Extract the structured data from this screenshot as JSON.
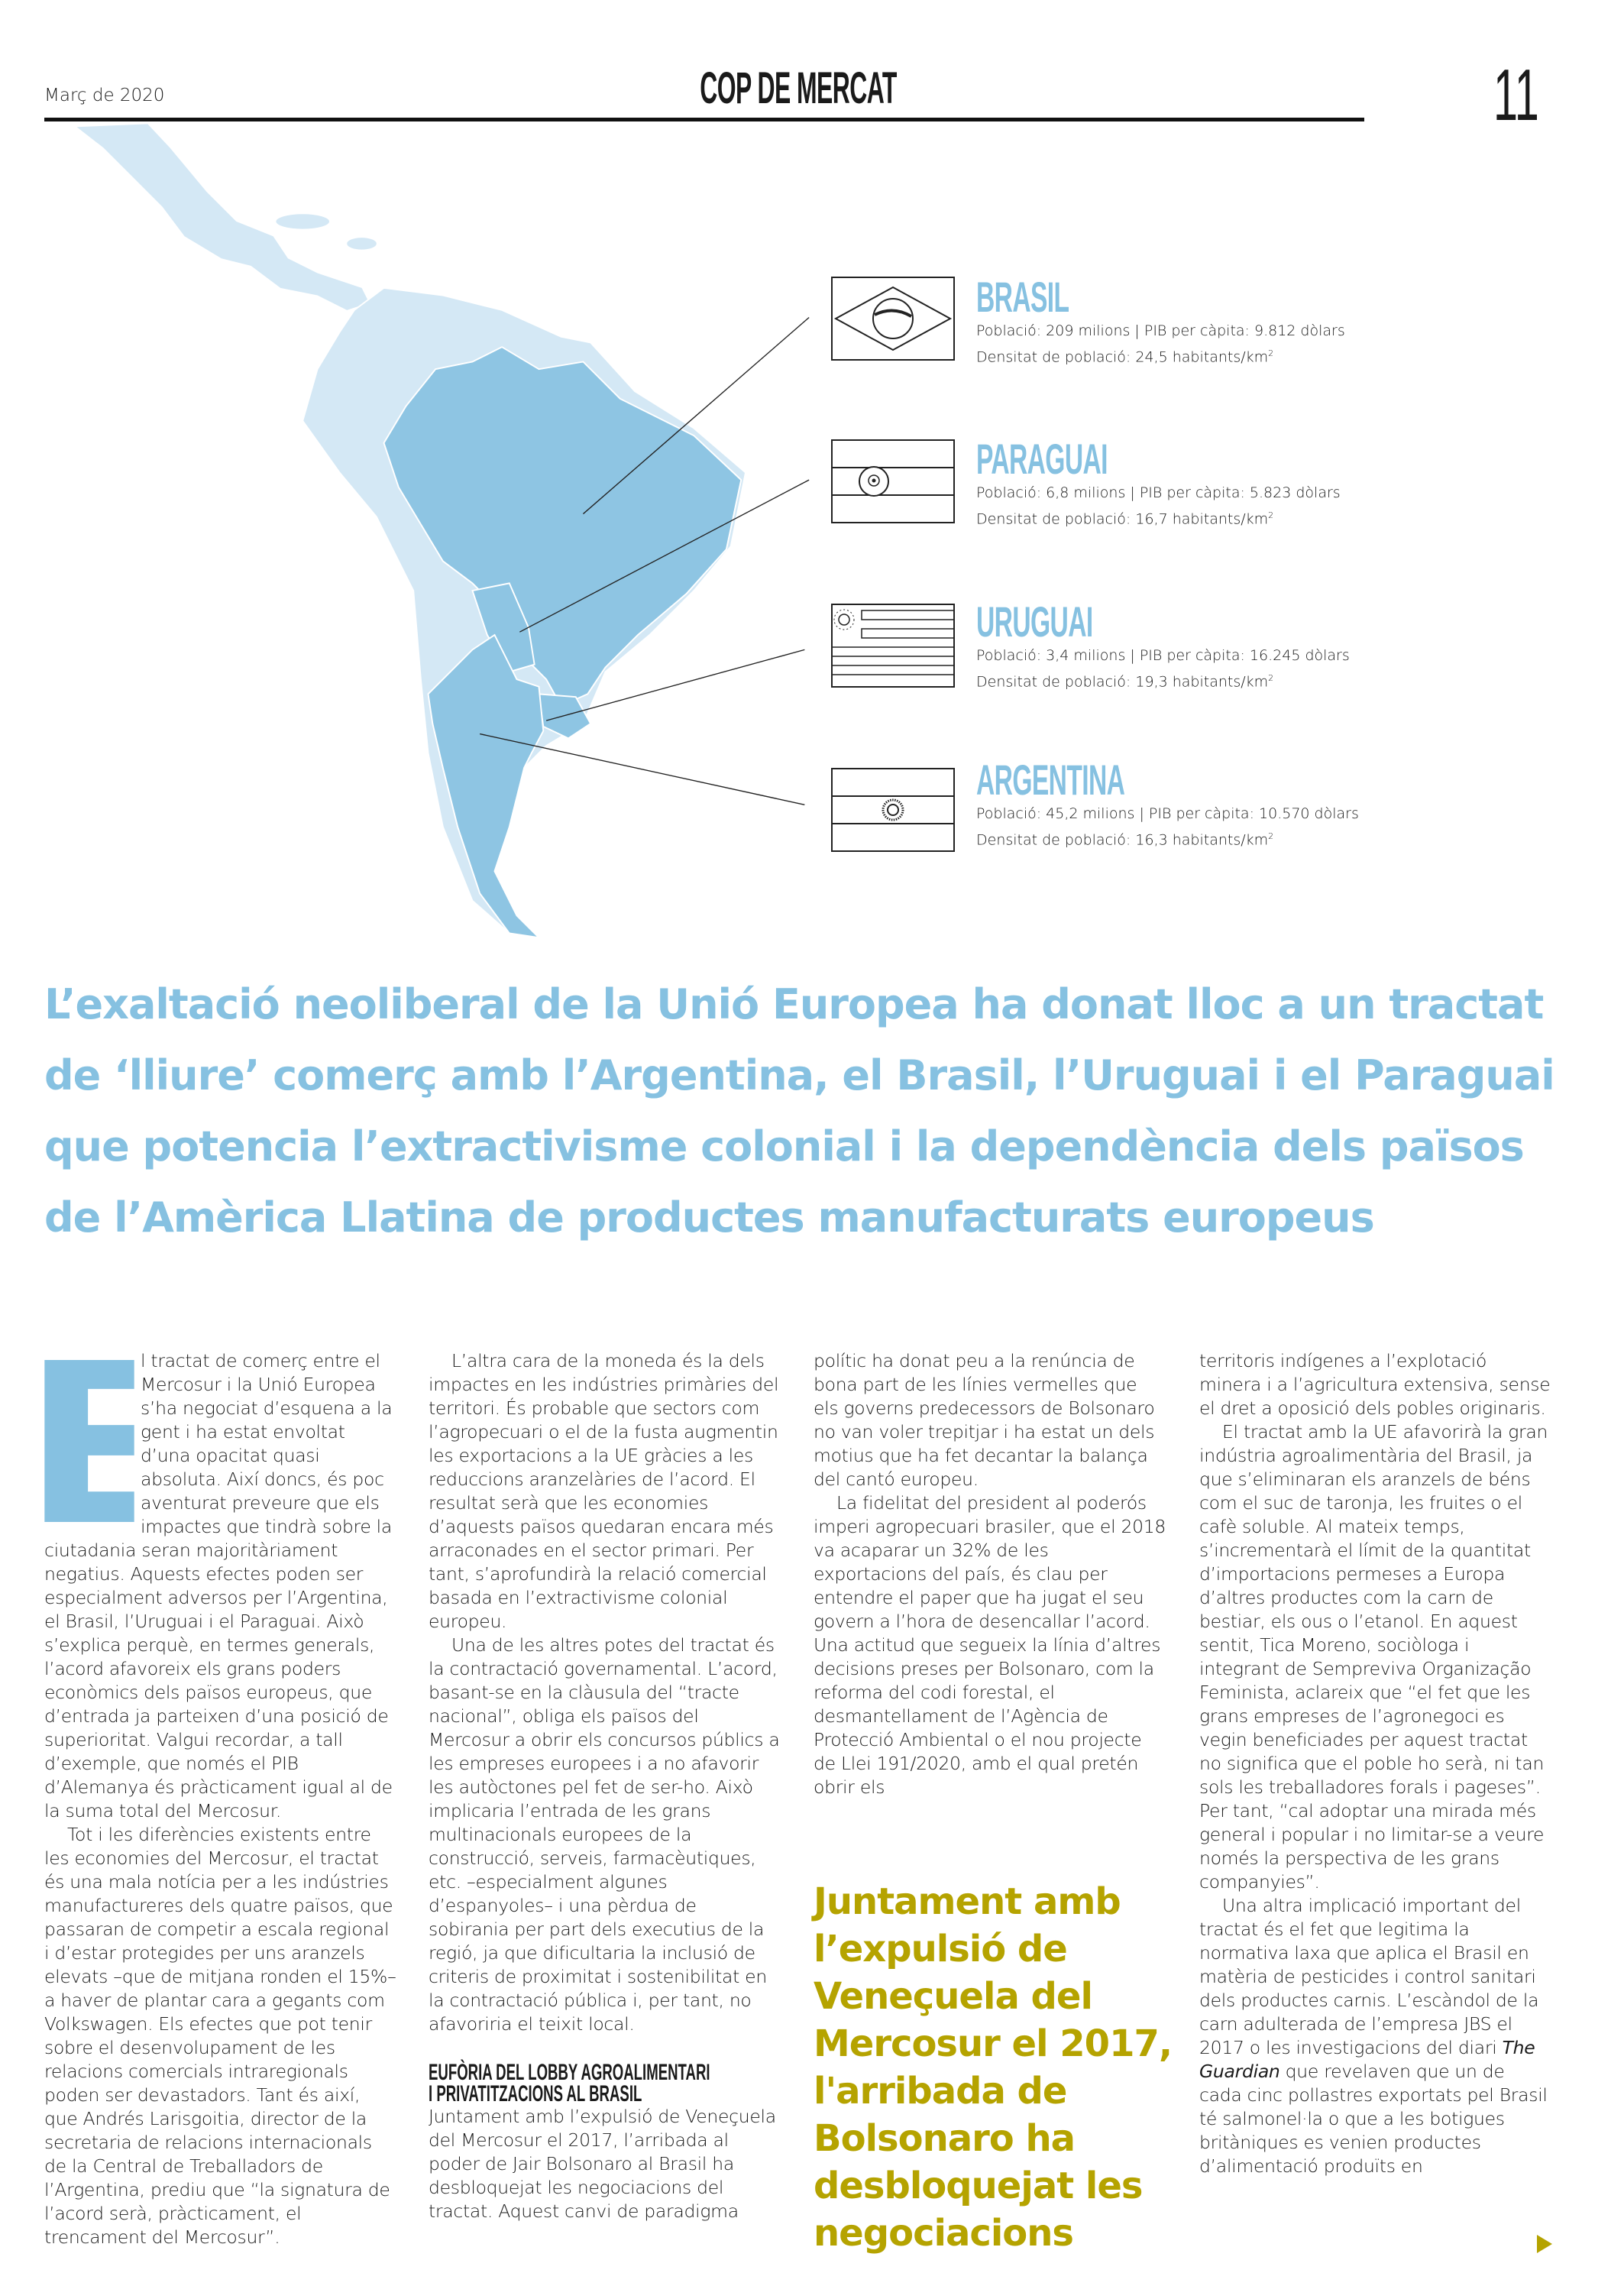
{
  "header": {
    "date": "Març de 2020",
    "section": "COP DE MERCAT",
    "page_number": "11"
  },
  "colors": {
    "accent_blue": "#86c1e1",
    "map_light": "#d4e8f5",
    "map_mercosur": "#8ec5e3",
    "pullquote_olive": "#b5a300"
  },
  "countries": [
    {
      "name": "BRASIL",
      "flag_icon": "brazil-flag-icon",
      "line1": "Població: 209 milions | PIB per càpita: 9.812 dòlars",
      "line2": "Densitat de població: 24,5 habitants/km",
      "sup": "2"
    },
    {
      "name": "PARAGUAI",
      "flag_icon": "paraguay-flag-icon",
      "line1": "Població: 6,8 milions | PIB per càpita: 5.823 dòlars",
      "line2": "Densitat de població: 16,7 habitants/km",
      "sup": "2"
    },
    {
      "name": "URUGUAI",
      "flag_icon": "uruguay-flag-icon",
      "line1": "Població: 3,4 milions | PIB per càpita: 16.245 dòlars",
      "line2": "Densitat de població: 19,3 habitants/km",
      "sup": "2"
    },
    {
      "name": "ARGENTINA",
      "flag_icon": "argentina-flag-icon",
      "line1": "Població: 45,2 milions | PIB per càpita: 10.570 dòlars",
      "line2": "Densitat de població: 16,3 habitants/km",
      "sup": "2"
    }
  ],
  "headline": [
    "L’exaltació neoliberal de la Unió Europea ha donat lloc a un tractat",
    "de ‘lliure’ comerç amb l’Argentina, el Brasil, l’Uruguai i el Paraguai",
    "que potencia l’extractivisme colonial i la dependència dels països",
    "de l’Amèrica Llatina de productes manufacturats europeus"
  ],
  "article": {
    "drop_cap": "E",
    "col1": [
      "l tractat de comerç entre el Mercosur i la Unió Europea s’ha negociat d’esquena a la gent i ha estat envoltat d’una opacitat quasi absoluta. Així doncs, és poc aventurat preveure que els impactes que tindrà sobre la ciutadania seran majoritàriament negatius. Aquests efectes poden ser especialment adversos per l’Argentina, el Brasil, l’Uruguai i el Paraguai. Això s’explica perquè, en termes generals, l’acord afavoreix els grans poders econòmics dels països europeus, que d’entrada ja parteixen d’una posició de superioritat. Valgui recordar, a tall d’exemple, que només el PIB d’Alemanya és pràcticament igual al de la suma total del Mercosur.",
      "Tot i les diferències existents entre les economies del Mercosur, el tractat és una mala notícia per a les indústries manufactureres dels quatre països, que passaran de competir a escala regional i d’estar protegides per uns aranzels elevats –que de mitjana ronden el 15%– a haver de plantar cara a gegants com Volkswagen. Els efectes que pot tenir sobre el desenvolupament de les relacions comercials intraregionals poden ser devastadors. Tant és així, que Andrés Larisgoitia, director de la secretaria de relacions internacionals de la Central de Treballadors de l’Argentina, prediu que “la signatura de l’acord serà, pràcticament, el trencament del Mercosur”."
    ],
    "col2": [
      "L’altra cara de la moneda és la dels impactes en les indústries primàries del territori. És probable que sectors com l’agropecuari o el de la fusta augmentin les exportacions a la UE gràcies a les reduccions aranzelàries de l’acord. El resultat serà que les economies d’aquests països quedaran encara més arraconades en el sector primari. Per tant, s’aprofundirà la relació comercial basada en l’extractivisme colonial europeu.",
      "Una de les altres potes del tractat és la contractació governamental. L’acord, basant-se en la clàusula del “tracte nacional”, obliga els països del Mercosur a obrir els concursos públics a les empreses europees i a no afavorir les autòctones pel fet de ser-ho. Això implicaria l’entrada de les grans multinacionals europees de la construcció, serveis, farmacèutiques, etc. –especialment algunes d’espanyoles– i una pèrdua de sobirania per part dels executius de la regió, ja que dificultaria la inclusió de criteris de proximitat i sostenibilitat en la contractació pública i, per tant, no afavoriria el teixit local."
    ],
    "subhead_line1": "EUFÒRIA DEL LOBBY AGROALIMENTARI",
    "subhead_line2": "I PRIVATITZACIONS AL BRASIL",
    "col2_after": "Juntament amb l’expulsió de Veneçuela del Mercosur el 2017, l’arribada al poder de Jair Bolsonaro al Brasil ha desbloquejat les negociacions del tractat. Aquest canvi de paradigma",
    "col3": [
      "polític ha donat peu a la renúncia de bona part de les línies vermelles que els governs predecessors de Bolsonaro no van voler trepitjar i ha estat un dels motius que ha fet decantar la balança del cantó europeu.",
      "La fidelitat del president al poderós imperi agropecuari brasiler, que el 2018 va acaparar un 32% de les exportacions del país, és clau per entendre el paper que ha jugat el seu govern a l’hora de desencallar l’acord. Una actitud que segueix la línia d’altres decisions preses per Bolsonaro, com la reforma del codi forestal, el desmantellament de l’Agència de Protecció Ambiental o el nou projecte de Llei 191/2020, amb el qual pretén obrir els"
    ],
    "pullquote": "Juntament amb l’expulsió de Veneçuela del Mercosur el 2017, l'arribada de Bolsonaro ha desbloquejat les negociacions",
    "col4": [
      "territoris indígenes a l’explotació minera i a l’agricultura extensiva, sense el dret a oposició dels pobles originaris.",
      "El tractat amb la UE afavorirà la gran indústria agroalimentària del Brasil, ja que s’eliminaran els aranzels de béns com el suc de taronja, les fruites o el cafè soluble. Al mateix temps, s’incrementarà el límit de la quantitat d’importacions permeses a Europa d’altres productes com la carn de bestiar, els ous o l’etanol. En aquest sentit, Tica Moreno, sociòloga i integrant de Sempreviva Organização Feminista, aclareix que “el fet que les grans empreses de l’agronegoci es vegin beneficiades per aquest tractat no significa que el poble ho serà, ni tan sols les treballadores forals i pageses”. Per tant, “cal adoptar una mirada més general i popular i no limitar-se a veure només la perspectiva de les grans companyies”."
    ],
    "col4_p3_before": "Una altra implicació important del tractat és el fet que legitima la normativa laxa que aplica el Brasil en matèria de pesticides i control sanitari dels productes carnis. L’escàndol de la carn adulterada de l’empresa JBS el 2017 o les investigacions del diari ",
    "col4_p3_italic": "The Guardian",
    "col4_p3_after": " que revelaven que un de cada cinc pollastres exportats pel Brasil té salmonel·la o que a les botigues britàniques es venien productes d’alimentació produïts en",
    "continue_icon": "triangle-right-icon"
  }
}
